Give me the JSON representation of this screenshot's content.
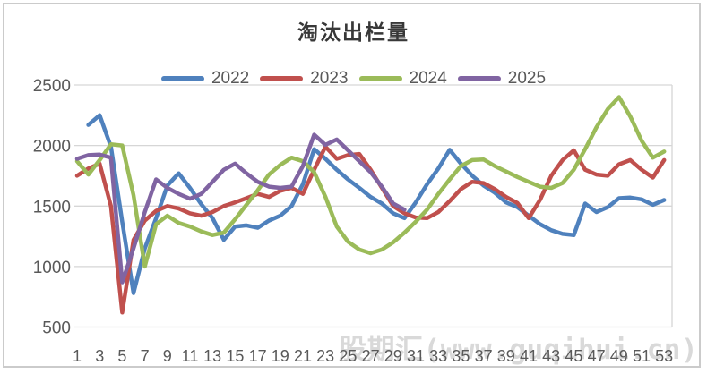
{
  "chart": {
    "title": "淘汰出栏量"
  },
  "watermark": {
    "text": "股期汇(www.guqihui.cn)"
  },
  "chart_data": {
    "type": "line",
    "title": "淘汰出栏量",
    "xlabel": "",
    "ylabel": "",
    "x": [
      1,
      2,
      3,
      4,
      5,
      6,
      7,
      8,
      9,
      10,
      11,
      12,
      13,
      14,
      15,
      16,
      17,
      18,
      19,
      20,
      21,
      22,
      23,
      24,
      25,
      26,
      27,
      28,
      29,
      30,
      31,
      32,
      33,
      34,
      35,
      36,
      37,
      38,
      39,
      40,
      41,
      42,
      43,
      44,
      45,
      46,
      47,
      48,
      49,
      50,
      51,
      52,
      53
    ],
    "x_tick_labels": [
      "1",
      "3",
      "5",
      "7",
      "9",
      "11",
      "13",
      "15",
      "17",
      "19",
      "21",
      "23",
      "25",
      "27",
      "29",
      "31",
      "33",
      "35",
      "37",
      "39",
      "41",
      "43",
      "45",
      "47",
      "49",
      "51",
      "53"
    ],
    "yticks": [
      500,
      1000,
      1500,
      2000,
      2500
    ],
    "ylim": [
      500,
      2500
    ],
    "grid": true,
    "legend_position": "top",
    "axis_text_color": "#595959",
    "gridline_color": "#d6d6d6",
    "series": [
      {
        "name": "2022",
        "color": "#4F81BD",
        "values": [
          null,
          2170,
          2250,
          1990,
          1370,
          780,
          1150,
          1400,
          1670,
          1770,
          1650,
          1515,
          1400,
          1220,
          1330,
          1340,
          1320,
          1380,
          1420,
          1500,
          1680,
          1970,
          1890,
          1800,
          1720,
          1650,
          1575,
          1520,
          1440,
          1400,
          1530,
          1680,
          1810,
          1965,
          1850,
          1750,
          1670,
          1610,
          1530,
          1490,
          1420,
          1350,
          1300,
          1270,
          1260,
          1520,
          1450,
          1490,
          1565,
          1570,
          1555,
          1510,
          1550
        ]
      },
      {
        "name": "2023",
        "color": "#C0504D",
        "values": [
          1750,
          1810,
          1850,
          1500,
          620,
          1220,
          1380,
          1460,
          1500,
          1480,
          1440,
          1420,
          1450,
          1500,
          1530,
          1565,
          1600,
          1575,
          1625,
          1650,
          1600,
          1800,
          1990,
          1890,
          1920,
          1930,
          1800,
          1650,
          1500,
          1440,
          1405,
          1400,
          1450,
          1540,
          1640,
          1700,
          1690,
          1640,
          1575,
          1525,
          1400,
          1550,
          1750,
          1880,
          1960,
          1800,
          1760,
          1750,
          1845,
          1880,
          1800,
          1735,
          1880
        ]
      },
      {
        "name": "2024",
        "color": "#9BBB59",
        "values": [
          1870,
          1760,
          1880,
          2010,
          2000,
          1590,
          1000,
          1350,
          1420,
          1360,
          1330,
          1290,
          1260,
          1280,
          1390,
          1510,
          1630,
          1760,
          1840,
          1900,
          1870,
          1780,
          1575,
          1330,
          1205,
          1140,
          1110,
          1140,
          1200,
          1280,
          1370,
          1470,
          1600,
          1720,
          1830,
          1880,
          1885,
          1830,
          1785,
          1740,
          1700,
          1660,
          1650,
          1690,
          1800,
          1970,
          2150,
          2300,
          2400,
          2240,
          2040,
          1900,
          1950
        ]
      },
      {
        "name": "2025",
        "color": "#8064A2",
        "values": [
          1890,
          1920,
          1925,
          1900,
          870,
          1150,
          1450,
          1720,
          1650,
          1600,
          1560,
          1600,
          1700,
          1800,
          1850,
          1770,
          1700,
          1660,
          1650,
          1660,
          1830,
          2090,
          2005,
          2050,
          1960,
          1870,
          1780,
          1660,
          1520,
          1470,
          null,
          null,
          null,
          null,
          null,
          null,
          null,
          null,
          null,
          null,
          null,
          null,
          null,
          null,
          null,
          null,
          null,
          null,
          null,
          null,
          null,
          null,
          null
        ]
      }
    ]
  }
}
